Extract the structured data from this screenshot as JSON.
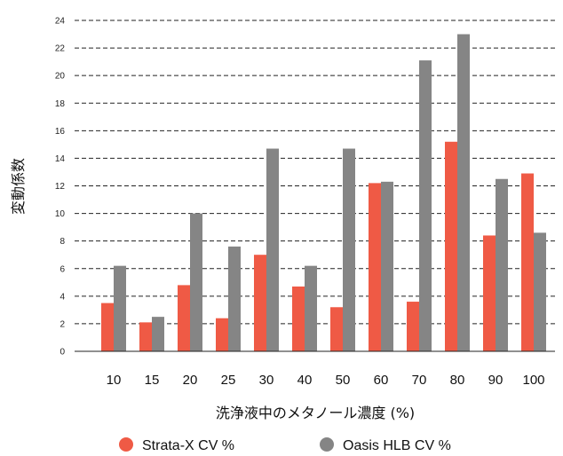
{
  "chart_data": {
    "type": "bar",
    "title": "",
    "xlabel": "洗浄液中のメタノール濃度 (%)",
    "ylabel": "変動係数",
    "categories": [
      "10",
      "15",
      "20",
      "25",
      "30",
      "40",
      "50",
      "60",
      "70",
      "80",
      "90",
      "100"
    ],
    "series": [
      {
        "name": "Strata-X CV %",
        "color": "#ef5a45",
        "values": [
          3.5,
          2.1,
          4.8,
          2.4,
          7.0,
          4.7,
          3.2,
          12.2,
          3.6,
          15.2,
          8.4,
          12.9
        ]
      },
      {
        "name": "Oasis HLB CV %",
        "color": "#858585",
        "values": [
          6.2,
          2.5,
          10.0,
          7.6,
          14.7,
          6.2,
          14.7,
          12.3,
          21.1,
          23.0,
          12.5,
          8.6
        ]
      }
    ],
    "ylim": [
      0,
      24
    ],
    "yticks": [
      0,
      2,
      4,
      6,
      8,
      10,
      12,
      14,
      16,
      18,
      20,
      22,
      24
    ],
    "grid": "dashed-horizontal",
    "legend_position": "bottom"
  }
}
